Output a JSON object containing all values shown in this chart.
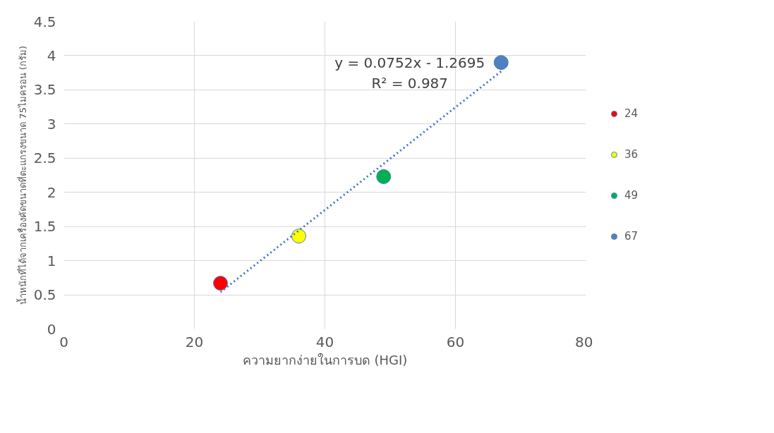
{
  "chart_data": {
    "type": "scatter",
    "xlabel": "ความยากง่ายในการบด (HGI)",
    "ylabel": "น้ำหนักที่ได้จากเครื่องคัดขนาดที่ตะแกรงขนาด 75ไมครอน (กรัม)",
    "xlim": [
      0,
      80
    ],
    "xticks": [
      0,
      20,
      40,
      60,
      80
    ],
    "ylim": [
      0,
      4.5
    ],
    "yticks": [
      0,
      0.5,
      1,
      1.5,
      2,
      2.5,
      3,
      3.5,
      4,
      4.5
    ],
    "grid": true,
    "legend": "right",
    "marker": "circle",
    "series": [
      {
        "name": "24",
        "color": "#ff0000",
        "x": [
          24
        ],
        "values": [
          0.67
        ]
      },
      {
        "name": "36",
        "color": "#ffff00",
        "x": [
          36
        ],
        "values": [
          1.36
        ]
      },
      {
        "name": "49",
        "color": "#00b050",
        "x": [
          49
        ],
        "values": [
          2.23
        ]
      },
      {
        "name": "67",
        "color": "#4f81bd",
        "x": [
          67
        ],
        "values": [
          3.9
        ]
      },
      {
        "type": "line",
        "color": "#4472c4",
        "line_style": "dotted",
        "marker": "none",
        "x": [
          24,
          67
        ],
        "values": [
          0.54,
          3.77
        ]
      }
    ],
    "annotations": [
      "y = 0.0752x - 1.2695",
      "R² = 0.987"
    ]
  }
}
